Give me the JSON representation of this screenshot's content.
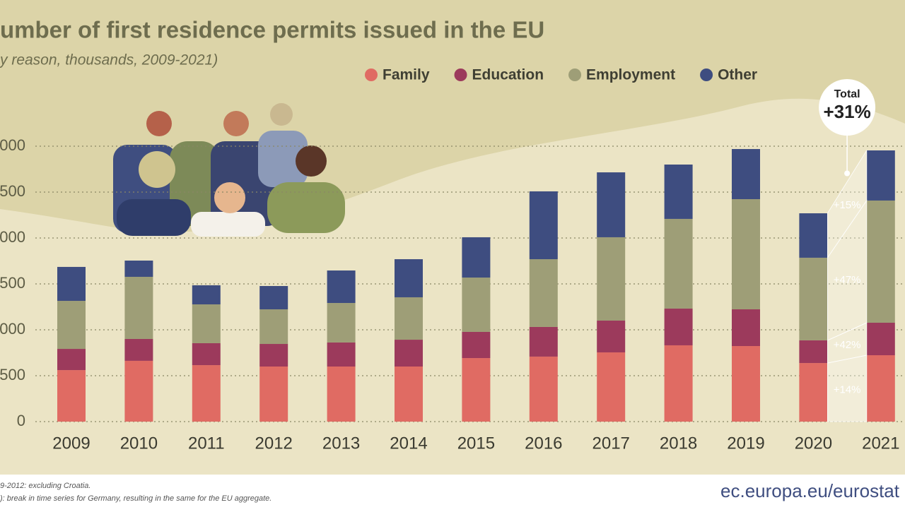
{
  "chart_data": {
    "type": "stacked_bar",
    "title": "umber of first residence permits issued in the EU",
    "subtitle": "y reason, thousands, 2009-2021)",
    "categories": [
      "2009",
      "2010",
      "2011",
      "2012",
      "2013",
      "2014",
      "2015",
      "2016",
      "2017",
      "2018",
      "2019",
      "2020",
      "2021"
    ],
    "series": [
      {
        "name": "Family",
        "color": "#e06b63",
        "change": "+14%",
        "values": [
          561,
          662,
          615,
          600,
          600,
          600,
          692,
          708,
          754,
          831,
          823,
          638,
          723
        ]
      },
      {
        "name": "Education",
        "color": "#9c3a5c",
        "change": "+42%",
        "values": [
          231,
          238,
          239,
          246,
          262,
          292,
          285,
          323,
          346,
          400,
          400,
          247,
          354
        ]
      },
      {
        "name": "Employment",
        "color": "#9e9e77",
        "change": "+47%",
        "values": [
          523,
          677,
          423,
          377,
          430,
          462,
          592,
          738,
          908,
          977,
          1200,
          900,
          1331
        ]
      },
      {
        "name": "Other",
        "color": "#3e4d80",
        "change": "+15%",
        "values": [
          370,
          177,
          208,
          254,
          354,
          415,
          439,
          739,
          707,
          592,
          546,
          484,
          546
        ]
      }
    ],
    "total_label": "Total",
    "total_change": "+31%",
    "ylim": [
      0,
      3000
    ],
    "yticks": [
      0,
      500,
      {
        "value": 1000,
        "label": "000"
      },
      {
        "value": 1500,
        "label": "500"
      },
      {
        "value": 2000,
        "label": "000"
      },
      {
        "value": 2500,
        "label": "500"
      },
      {
        "value": 3000,
        "label": "000"
      }
    ],
    "grid": true,
    "footnotes": [
      "9-2012: excluding Croatia.",
      "): break in time series for Germany, resulting in the same for the EU aggregate."
    ],
    "source": "ec.europa.eu/eurostat"
  }
}
